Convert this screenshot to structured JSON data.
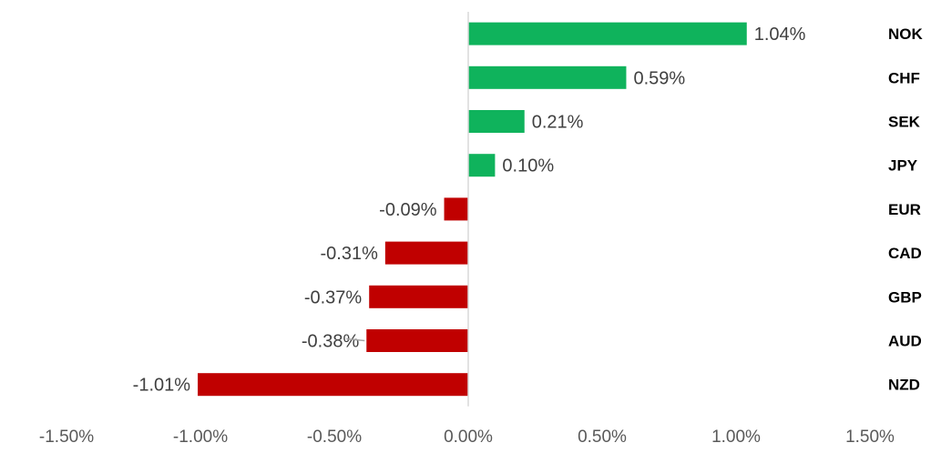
{
  "chart_data": {
    "type": "bar",
    "orientation": "horizontal",
    "categories": [
      "NOK",
      "CHF",
      "SEK",
      "JPY",
      "EUR",
      "CAD",
      "GBP",
      "AUD",
      "NZD"
    ],
    "values": [
      1.04,
      0.59,
      0.21,
      0.1,
      -0.09,
      -0.31,
      -0.37,
      -0.38,
      -1.01
    ],
    "data_labels": [
      "1.04%",
      "0.59%",
      "0.21%",
      "0.10%",
      "-0.09%",
      "-0.31%",
      "-0.37%",
      "-0.38%",
      "-1.01%"
    ],
    "xlim": [
      -1.5,
      1.5
    ],
    "x_ticks": [
      -1.5,
      -1.0,
      -0.5,
      0.0,
      0.5,
      1.0,
      1.5
    ],
    "x_tick_labels": [
      "-1.50%",
      "-1.00%",
      "-0.50%",
      "0.00%",
      "0.50%",
      "1.00%",
      "1.50%"
    ],
    "title": "",
    "xlabel": "",
    "ylabel": "",
    "grid": false,
    "legend": "none",
    "colors": {
      "positive": "#0fb35c",
      "negative": "#c00000",
      "axis": "#d9d9d9"
    }
  }
}
